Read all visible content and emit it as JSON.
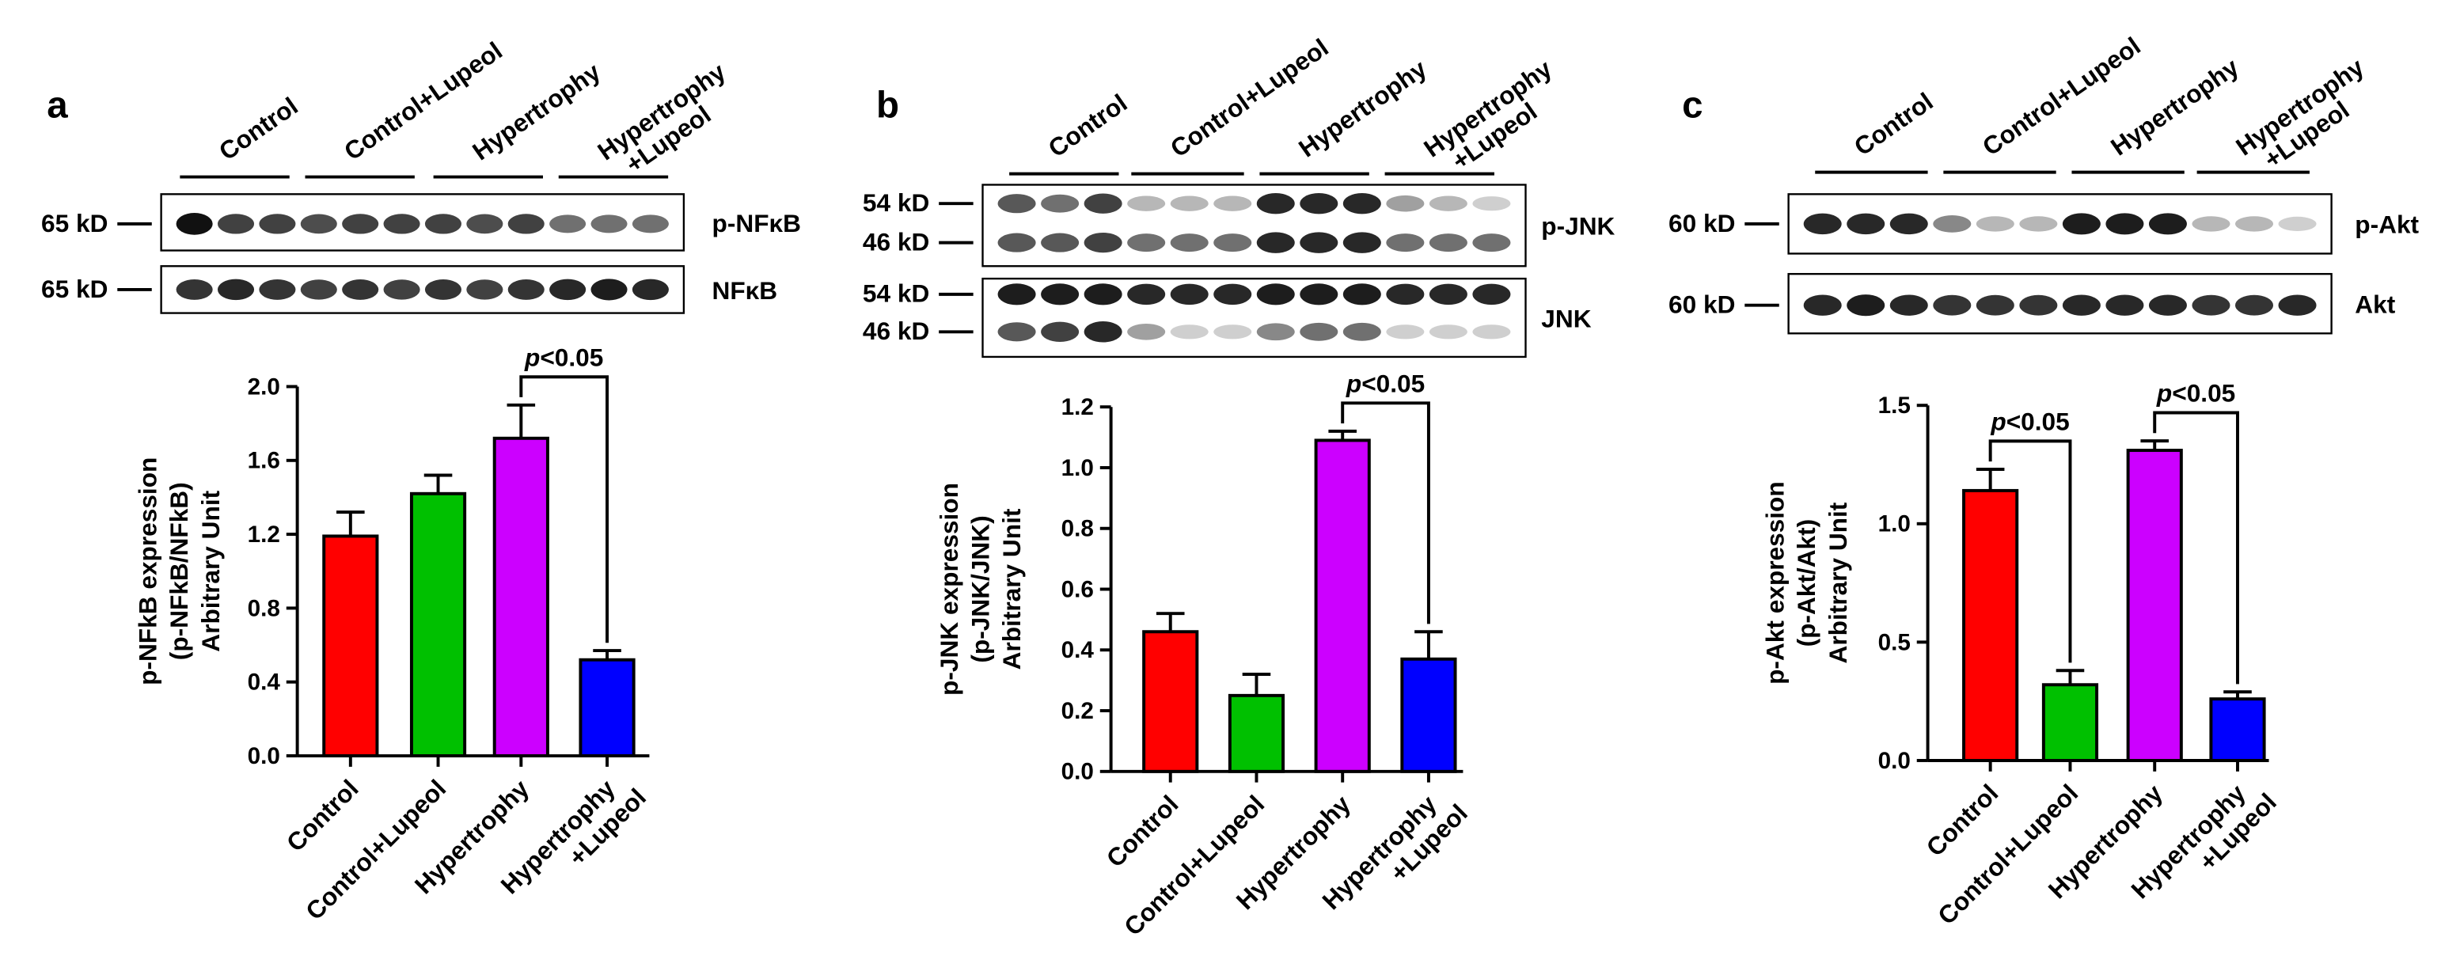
{
  "chart_data": [
    {
      "type": "bar",
      "panel": "a",
      "lanes": [
        "Control",
        "Control+Lupeol",
        "Hypertrophy",
        "Hypertrophy\n+Lupeol"
      ],
      "blots": [
        {
          "name": "p-NFκB",
          "markers": [
            "65 kD"
          ]
        },
        {
          "name": "NFκB",
          "markers": [
            "65 kD"
          ]
        }
      ],
      "ylabel": [
        "p-NFkB expression",
        "(p-NFkB/NFkB)",
        "Arbitrary Unit"
      ],
      "categories": [
        "Control",
        "Control+Lupeol",
        "Hypertrophy",
        "Hypertrophy\n+Lupeol"
      ],
      "values": [
        1.19,
        1.42,
        1.72,
        0.52
      ],
      "errors": [
        0.13,
        0.1,
        0.18,
        0.05
      ],
      "colors": [
        "#ff0000",
        "#00c000",
        "#cc00ff",
        "#0000ff"
      ],
      "ylim": [
        0,
        2
      ],
      "yticks": [
        {
          "value": 0,
          "label": "0.0"
        },
        0.4,
        0.8,
        1.2,
        1.6,
        {
          "value": 2,
          "label": "2.0"
        }
      ],
      "annotations": [
        {
          "text": "p<0.05",
          "between": [
            2,
            3
          ]
        }
      ]
    },
    {
      "type": "bar",
      "panel": "b",
      "lanes": [
        "Control",
        "Control+Lupeol",
        "Hypertrophy",
        "Hypertrophy\n+Lupeol"
      ],
      "blots": [
        {
          "name": "p-JNK",
          "markers": [
            "54 kD",
            "46 kD"
          ]
        },
        {
          "name": "JNK",
          "markers": [
            "54 kD",
            "46 kD"
          ]
        }
      ],
      "ylabel": [
        "p-JNK expression",
        "(p-JNK/JNK)",
        "Arbitrary Unit"
      ],
      "categories": [
        "Control",
        "Control+Lupeol",
        "Hypertrophy",
        "Hypertrophy\n+Lupeol"
      ],
      "values": [
        0.46,
        0.25,
        1.09,
        0.37
      ],
      "errors": [
        0.06,
        0.07,
        0.03,
        0.09
      ],
      "colors": [
        "#ff0000",
        "#00c000",
        "#cc00ff",
        "#0000ff"
      ],
      "ylim": [
        0,
        1.2
      ],
      "yticks": [
        {
          "value": 0,
          "label": "0.0"
        },
        0.2,
        0.4,
        0.6,
        0.8,
        {
          "value": 1,
          "label": "1.0"
        },
        1.2
      ],
      "annotations": [
        {
          "text": "p<0.05",
          "between": [
            2,
            3
          ]
        }
      ]
    },
    {
      "type": "bar",
      "panel": "c",
      "lanes": [
        "Control",
        "Control+Lupeol",
        "Hypertrophy",
        "Hypertrophy\n+Lupeol"
      ],
      "blots": [
        {
          "name": "p-Akt",
          "markers": [
            "60 kD"
          ]
        },
        {
          "name": "Akt",
          "markers": [
            "60 kD"
          ]
        }
      ],
      "ylabel": [
        "p-Akt expression",
        "(p-Akt/Akt)",
        "Arbitrary Unit"
      ],
      "categories": [
        "Control",
        "Control+Lupeol",
        "Hypertrophy",
        "Hypertrophy\n+Lupeol"
      ],
      "values": [
        1.14,
        0.32,
        1.31,
        0.26
      ],
      "errors": [
        0.09,
        0.06,
        0.04,
        0.03
      ],
      "colors": [
        "#ff0000",
        "#00c000",
        "#cc00ff",
        "#0000ff"
      ],
      "ylim": [
        0,
        1.5
      ],
      "yticks": [
        {
          "value": 0,
          "label": "0.0"
        },
        0.5,
        {
          "value": 1,
          "label": "1.0"
        },
        1.5
      ],
      "annotations": [
        {
          "text": "p<0.05",
          "between": [
            0,
            1
          ]
        },
        {
          "text": "p<0.05",
          "between": [
            2,
            3
          ]
        }
      ]
    }
  ]
}
